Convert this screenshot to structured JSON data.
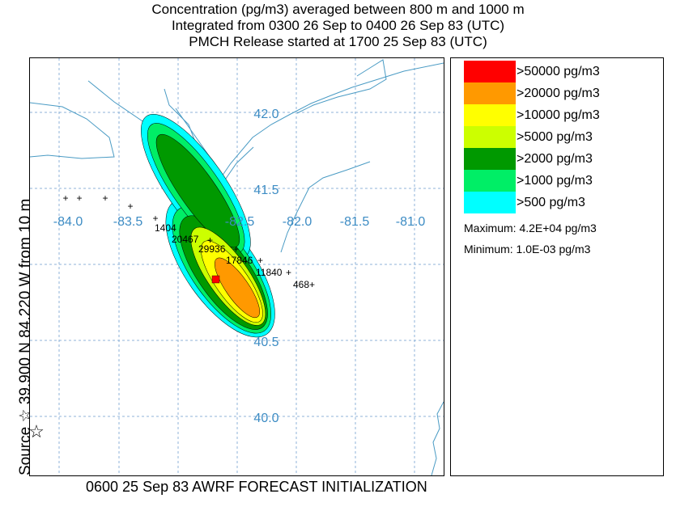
{
  "titles": {
    "line1": "Concentration  (pg/m3) averaged between   800 m and  1000 m",
    "line2": "Integrated from 0300 26 Sep to 0400 26 Sep 83 (UTC)",
    "line3": "PMCH Release started at 1700 25 Sep 83 (UTC)"
  },
  "side_label": "Source ☆  39.900  N  84.220  W    from    10 m",
  "footer": "0600 25 Sep 83 AWRF FORECAST INITIALIZATION",
  "map": {
    "lon_labels": [
      "-84.0",
      "-83.5",
      "-82.5",
      "-82.0",
      "-81.5",
      "-81.0"
    ],
    "lat_labels": [
      "42.0",
      "41.5",
      "40.5",
      "40.0"
    ],
    "source_marker": "☆",
    "measurements": [
      {
        "value": "1404"
      },
      {
        "value": "20467"
      },
      {
        "value": "29936"
      },
      {
        "value": "17846"
      },
      {
        "value": "11840"
      },
      {
        "value": "468"
      }
    ],
    "extra_marker": "+",
    "colors": {
      "grid": "#8fb3d8",
      "coast": "#4a9bc4",
      "axis_text": "#3d8cc4"
    }
  },
  "legend": {
    "items": [
      {
        "label": ">50000 pg/m3",
        "color": "#ff0000"
      },
      {
        "label": ">20000 pg/m3",
        "color": "#ff9900"
      },
      {
        "label": ">10000 pg/m3",
        "color": "#ffff00"
      },
      {
        "label": ">5000 pg/m3",
        "color": "#ccff00"
      },
      {
        "label": ">2000 pg/m3",
        "color": "#009900"
      },
      {
        "label": ">1000 pg/m3",
        "color": "#00ee66"
      },
      {
        "label": ">500 pg/m3",
        "color": "#00ffff"
      }
    ],
    "maximum": "Maximum: 4.2E+04 pg/m3",
    "minimum": "Minimum: 1.0E-03 pg/m3"
  }
}
